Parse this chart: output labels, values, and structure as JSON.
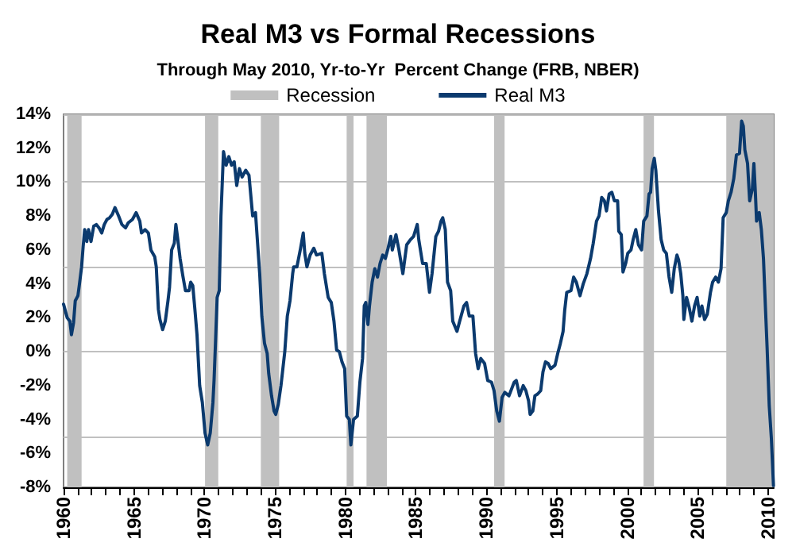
{
  "chart_data": {
    "type": "line",
    "title": "Real M3 vs Formal Recessions",
    "subtitle": "Through May 2010, Yr-to-Yr  Percent Change (FRB, NBER)",
    "xlim": [
      1960,
      2010.4
    ],
    "xticks": [
      1960,
      {
        "value": 1961,
        "label": null
      },
      {
        "value": 1962,
        "label": null
      },
      {
        "value": 1963,
        "label": null
      },
      {
        "value": 1964,
        "label": null
      },
      1965,
      {
        "value": 1966,
        "label": null
      },
      {
        "value": 1967,
        "label": null
      },
      {
        "value": 1968,
        "label": null
      },
      {
        "value": 1969,
        "label": null
      },
      1970,
      {
        "value": 1971,
        "label": null
      },
      {
        "value": 1972,
        "label": null
      },
      {
        "value": 1973,
        "label": null
      },
      {
        "value": 1974,
        "label": null
      },
      1975,
      {
        "value": 1976,
        "label": null
      },
      {
        "value": 1977,
        "label": null
      },
      {
        "value": 1978,
        "label": null
      },
      {
        "value": 1979,
        "label": null
      },
      1980,
      {
        "value": 1981,
        "label": null
      },
      {
        "value": 1982,
        "label": null
      },
      {
        "value": 1983,
        "label": null
      },
      {
        "value": 1984,
        "label": null
      },
      1985,
      {
        "value": 1986,
        "label": null
      },
      {
        "value": 1987,
        "label": null
      },
      {
        "value": 1988,
        "label": null
      },
      {
        "value": 1989,
        "label": null
      },
      1990,
      {
        "value": 1991,
        "label": null
      },
      {
        "value": 1992,
        "label": null
      },
      {
        "value": 1993,
        "label": null
      },
      {
        "value": 1994,
        "label": null
      },
      1995,
      {
        "value": 1996,
        "label": null
      },
      {
        "value": 1997,
        "label": null
      },
      {
        "value": 1998,
        "label": null
      },
      {
        "value": 1999,
        "label": null
      },
      2000,
      {
        "value": 2001,
        "label": null
      },
      {
        "value": 2002,
        "label": null
      },
      {
        "value": 2003,
        "label": null
      },
      {
        "value": 2004,
        "label": null
      },
      2005,
      {
        "value": 2006,
        "label": null
      },
      {
        "value": 2007,
        "label": null
      },
      {
        "value": 2008,
        "label": null
      },
      {
        "value": 2009,
        "label": null
      },
      2010
    ],
    "ylim": [
      -8,
      14
    ],
    "yticks": [
      {
        "value": -8,
        "label": "-8%"
      },
      {
        "value": -6,
        "label": "-6%"
      },
      {
        "value": -4,
        "label": "-4%"
      },
      {
        "value": -2,
        "label": "-2%"
      },
      {
        "value": 0,
        "label": "0%"
      },
      {
        "value": 2,
        "label": "2%"
      },
      {
        "value": 4,
        "label": "4%"
      },
      {
        "value": 6,
        "label": "6%"
      },
      {
        "value": 8,
        "label": "8%"
      },
      {
        "value": 10,
        "label": "10%"
      },
      {
        "value": 12,
        "label": "12%"
      },
      {
        "value": 14,
        "label": "14%"
      }
    ],
    "grid": "y",
    "legend": "top",
    "bands": [
      {
        "axis": "x",
        "from": 1960.26,
        "to": 1961.28,
        "label": "Recession",
        "color": "#c0c0c0"
      },
      {
        "axis": "x",
        "from": 1970.04,
        "to": 1970.98,
        "color": "#c0c0c0"
      },
      {
        "axis": "x",
        "from": 1974.0,
        "to": 1975.3,
        "color": "#c0c0c0"
      },
      {
        "axis": "x",
        "from": 1980.09,
        "to": 1980.58,
        "color": "#c0c0c0"
      },
      {
        "axis": "x",
        "from": 1981.5,
        "to": 1982.95,
        "color": "#c0c0c0"
      },
      {
        "axis": "x",
        "from": 1990.55,
        "to": 1991.3,
        "color": "#c0c0c0"
      },
      {
        "axis": "x",
        "from": 2001.16,
        "to": 2001.9,
        "color": "#c0c0c0"
      },
      {
        "axis": "x",
        "from": 2007.03,
        "to": 2010.4,
        "color": "#c0c0c0"
      }
    ],
    "series": [
      {
        "name": "Real M3",
        "color": "#0b3a6e",
        "x": [
          1960.0,
          1960.26,
          1960.45,
          1960.56,
          1960.71,
          1960.83,
          1961.02,
          1961.13,
          1961.28,
          1961.39,
          1961.5,
          1961.65,
          1961.77,
          1961.95,
          1962.14,
          1962.33,
          1962.52,
          1962.71,
          1962.89,
          1963.08,
          1963.27,
          1963.46,
          1963.65,
          1963.91,
          1964.14,
          1964.4,
          1964.59,
          1964.89,
          1965.15,
          1965.41,
          1965.53,
          1965.79,
          1966.02,
          1966.2,
          1966.47,
          1966.58,
          1966.73,
          1966.84,
          1967.03,
          1967.22,
          1967.41,
          1967.52,
          1967.67,
          1967.86,
          1967.97,
          1968.08,
          1968.27,
          1968.46,
          1968.65,
          1968.91,
          1969.02,
          1969.17,
          1969.32,
          1969.47,
          1969.66,
          1969.85,
          1970.04,
          1970.23,
          1970.41,
          1970.6,
          1970.68,
          1970.79,
          1970.9,
          1971.05,
          1971.17,
          1971.35,
          1971.54,
          1971.73,
          1971.92,
          1972.11,
          1972.29,
          1972.48,
          1972.67,
          1972.93,
          1973.16,
          1973.42,
          1973.62,
          1973.92,
          1974.07,
          1974.26,
          1974.45,
          1974.56,
          1974.76,
          1974.94,
          1975.06,
          1975.24,
          1975.43,
          1975.7,
          1975.88,
          1976.07,
          1976.26,
          1976.33,
          1976.56,
          1976.82,
          1977.01,
          1977.12,
          1977.27,
          1977.5,
          1977.76,
          1977.95,
          1978.33,
          1978.51,
          1978.78,
          1979.0,
          1979.19,
          1979.38,
          1979.57,
          1979.76,
          1979.95,
          1980.09,
          1980.28,
          1980.39,
          1980.58,
          1980.85,
          1981.03,
          1981.22,
          1981.34,
          1981.45,
          1981.6,
          1981.71,
          1981.9,
          1982.09,
          1982.28,
          1982.46,
          1982.65,
          1982.84,
          1983.03,
          1983.22,
          1983.33,
          1983.59,
          1983.78,
          1984.08,
          1984.35,
          1984.61,
          1984.84,
          1985.1,
          1985.21,
          1985.48,
          1985.74,
          1985.97,
          1986.15,
          1986.42,
          1986.61,
          1986.79,
          1986.91,
          1987.09,
          1987.25,
          1987.47,
          1987.62,
          1987.92,
          1988.11,
          1988.41,
          1988.6,
          1988.79,
          1989.05,
          1989.24,
          1989.42,
          1989.61,
          1989.88,
          1990.1,
          1990.37,
          1990.55,
          1990.74,
          1990.93,
          1991.12,
          1991.31,
          1991.61,
          1991.68,
          1991.98,
          1992.13,
          1992.36,
          1992.62,
          1992.81,
          1993.0,
          1993.11,
          1993.3,
          1993.45,
          1993.64,
          1993.86,
          1994.02,
          1994.2,
          1994.39,
          1994.58,
          1994.88,
          1995.07,
          1995.26,
          1995.45,
          1995.56,
          1995.71,
          1996.01,
          1996.2,
          1996.39,
          1996.65,
          1996.88,
          1997.14,
          1997.4,
          1997.59,
          1997.82,
          1998.0,
          1998.19,
          1998.38,
          1998.53,
          1998.72,
          1998.91,
          1999.09,
          1999.32,
          1999.4,
          1999.58,
          1999.7,
          1999.89,
          2000.04,
          2000.27,
          2000.42,
          2000.61,
          2000.8,
          2001.02,
          2001.17,
          2001.4,
          2001.55,
          2001.66,
          2001.77,
          2001.92,
          2002.03,
          2002.22,
          2002.41,
          2002.59,
          2002.78,
          2002.97,
          2003.16,
          2003.34,
          2003.53,
          2003.65,
          2003.8,
          2003.95,
          2004.02,
          2004.21,
          2004.4,
          2004.59,
          2004.78,
          2004.96,
          2005.15,
          2005.3,
          2005.49,
          2005.68,
          2005.91,
          2006.06,
          2006.28,
          2006.47,
          2006.66,
          2006.81,
          2007.03,
          2007.18,
          2007.37,
          2007.56,
          2007.75,
          2007.97,
          2008.12,
          2008.24,
          2008.35,
          2008.54,
          2008.69,
          2008.88,
          2008.99,
          2009.1,
          2009.18,
          2009.37,
          2009.52,
          2009.67,
          2009.82,
          2009.93,
          2010.08,
          2010.23,
          2010.38
        ],
        "values": [
          2.8,
          2.0,
          1.8,
          1.0,
          1.7,
          3.0,
          3.3,
          4.0,
          5.0,
          6.2,
          7.2,
          6.5,
          7.2,
          6.5,
          7.4,
          7.5,
          7.3,
          7.0,
          7.5,
          7.8,
          7.9,
          8.1,
          8.5,
          8.0,
          7.5,
          7.3,
          7.6,
          7.8,
          8.2,
          7.7,
          7.0,
          7.2,
          7.0,
          6.0,
          5.6,
          5.0,
          2.5,
          1.9,
          1.3,
          1.8,
          3.0,
          3.8,
          6.0,
          6.4,
          7.5,
          6.8,
          5.5,
          4.5,
          3.6,
          3.6,
          4.1,
          3.9,
          2.5,
          1.0,
          -2.0,
          -3.0,
          -4.8,
          -5.5,
          -4.8,
          -3.0,
          -1.7,
          0.7,
          3.2,
          3.6,
          8.0,
          11.8,
          11.0,
          11.5,
          11.0,
          11.2,
          9.8,
          10.8,
          10.3,
          10.7,
          10.4,
          8.0,
          8.2,
          4.6,
          2.1,
          0.5,
          -0.1,
          -1.3,
          -2.6,
          -3.5,
          -3.7,
          -3.1,
          -2.0,
          0.0,
          2.1,
          3.0,
          4.6,
          5.0,
          5.0,
          6.1,
          7.0,
          5.8,
          5.0,
          5.7,
          6.1,
          5.7,
          5.8,
          4.6,
          3.2,
          2.9,
          1.8,
          0.1,
          0.0,
          -0.6,
          -1.0,
          -3.8,
          -4.0,
          -5.5,
          -4.0,
          -3.8,
          -1.8,
          -0.4,
          2.7,
          2.9,
          1.6,
          2.7,
          4.1,
          4.9,
          4.4,
          5.2,
          5.7,
          5.5,
          6.1,
          6.8,
          6.0,
          6.9,
          6.1,
          4.6,
          6.3,
          6.6,
          6.8,
          7.5,
          6.6,
          5.2,
          5.2,
          3.5,
          4.6,
          6.8,
          7.1,
          7.7,
          7.9,
          7.2,
          4.1,
          3.6,
          1.8,
          1.2,
          1.8,
          2.7,
          2.9,
          2.1,
          2.1,
          -0.1,
          -1.0,
          -0.4,
          -0.7,
          -1.7,
          -1.8,
          -2.3,
          -3.5,
          -4.1,
          -2.7,
          -2.4,
          -2.6,
          -2.6,
          -1.8,
          -1.7,
          -2.6,
          -2.0,
          -2.3,
          -2.9,
          -3.7,
          -3.5,
          -2.6,
          -2.5,
          -2.3,
          -1.2,
          -0.6,
          -0.7,
          -1.0,
          -0.8,
          -0.1,
          0.5,
          1.2,
          2.4,
          3.5,
          3.6,
          4.4,
          4.1,
          3.3,
          4.0,
          4.6,
          5.5,
          6.4,
          7.7,
          8.0,
          9.1,
          8.9,
          8.3,
          9.3,
          9.4,
          8.9,
          8.9,
          7.1,
          6.9,
          4.7,
          5.2,
          5.8,
          6.0,
          6.6,
          7.2,
          6.3,
          6.0,
          7.7,
          8.0,
          9.3,
          9.4,
          10.8,
          11.4,
          10.7,
          8.3,
          6.6,
          6.0,
          5.8,
          4.4,
          3.5,
          4.9,
          5.7,
          5.4,
          4.6,
          3.3,
          1.9,
          3.2,
          2.6,
          1.8,
          2.7,
          3.2,
          2.1,
          2.7,
          1.9,
          2.2,
          3.5,
          4.1,
          4.4,
          4.1,
          4.9,
          7.9,
          8.2,
          8.9,
          9.4,
          10.2,
          11.6,
          11.7,
          13.6,
          13.3,
          11.9,
          11.1,
          8.9,
          9.6,
          11.1,
          9.3,
          7.7,
          8.2,
          7.2,
          5.5,
          2.4,
          0.2,
          -3.2,
          -5.1,
          -7.9
        ]
      }
    ]
  }
}
